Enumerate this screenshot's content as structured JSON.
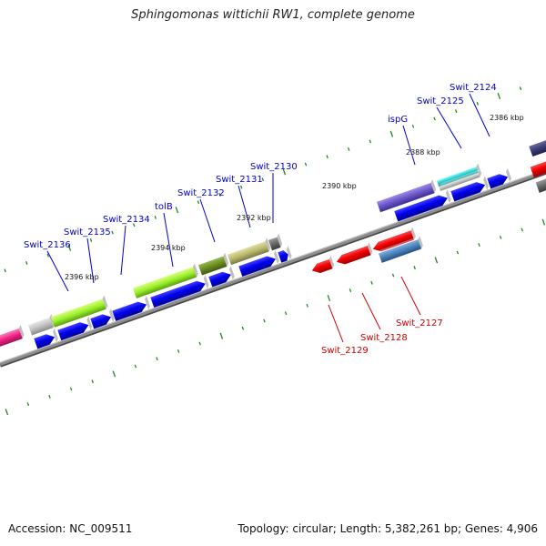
{
  "title": "Sphingomonas wittichii RW1, complete genome",
  "accession_text": "Accession: NC_009511",
  "summary_text": "Topology: circular; Length: 5,382,261 bp; Genes: 4,906",
  "colors": {
    "backbone": "#7a7a7a",
    "tick": "#1f8a1f",
    "forward_label": "#0000cc",
    "reverse_label": "#cc0000",
    "forward_gene": "#0000ee",
    "reverse_gene": "#ee0000"
  },
  "scale": {
    "kbp_labels": [
      "2386 kbp",
      "2388 kbp",
      "2390 kbp",
      "2392 kbp",
      "2394 kbp",
      "2396 kbp"
    ]
  },
  "forward_labels": [
    "Swit_2124",
    "Swit_2125",
    "ispG",
    "Swit_2130",
    "Swit_2131",
    "Swit_2132",
    "tolB",
    "Swit_2134",
    "Swit_2135",
    "Swit_2136"
  ],
  "reverse_labels": [
    "Swit_2127",
    "Swit_2128",
    "Swit_2129"
  ]
}
